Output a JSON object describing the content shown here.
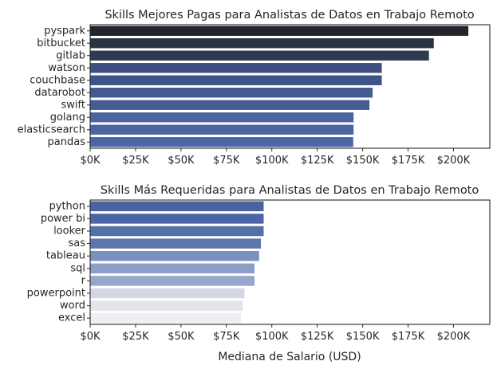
{
  "chart_data": [
    {
      "type": "bar",
      "orientation": "horizontal",
      "title": "Skills Mejores Pagas para Analistas de Datos en Trabajo Remoto",
      "xlabel": "",
      "ylabel": "",
      "categories": [
        "pyspark",
        "bitbucket",
        "gitlab",
        "watson",
        "couchbase",
        "datarobot",
        "swift",
        "golang",
        "elasticsearch",
        "pandas"
      ],
      "values": [
        208172,
        189155,
        186500,
        160515,
        160515,
        155486,
        153750,
        145000,
        145000,
        144828
      ],
      "colors": [
        "#23252b",
        "#2a3342",
        "#2f3a52",
        "#3c4f80",
        "#3e5387",
        "#44598f",
        "#465c94",
        "#4b63a0",
        "#4c64a2",
        "#4d66a5"
      ],
      "xlim": [
        0,
        220000
      ],
      "xticks": [
        0,
        25000,
        50000,
        75000,
        100000,
        125000,
        150000,
        175000,
        200000
      ],
      "xticklabels": [
        "$0K",
        "$25K",
        "$50K",
        "$75K",
        "$100K",
        "$125K",
        "$150K",
        "$175K",
        "$200K"
      ],
      "grid": false
    },
    {
      "type": "bar",
      "orientation": "horizontal",
      "title": "Skills Más Requeridas para Analistas de Datos en Trabajo Remoto",
      "xlabel": "Mediana de Salario (USD)",
      "ylabel": "",
      "categories": [
        "python",
        "power bi",
        "looker",
        "sas",
        "tableau",
        "sql",
        "r",
        "powerpoint",
        "word",
        "excel"
      ],
      "values": [
        95500,
        95500,
        95500,
        94000,
        93000,
        90500,
        90500,
        85000,
        84000,
        83000
      ],
      "colors": [
        "#4a64a3",
        "#4c66a5",
        "#5470ab",
        "#5c77b0",
        "#7c90c0",
        "#8c9dc7",
        "#97a6cc",
        "#d3d8e4",
        "#e3e5eb",
        "#eeeff2"
      ],
      "xlim": [
        0,
        220000
      ],
      "xticks": [
        0,
        25000,
        50000,
        75000,
        100000,
        125000,
        150000,
        175000,
        200000
      ],
      "xticklabels": [
        "$0K",
        "$25K",
        "$50K",
        "$75K",
        "$100K",
        "$125K",
        "$150K",
        "$175K",
        "$200K"
      ],
      "grid": false
    }
  ]
}
